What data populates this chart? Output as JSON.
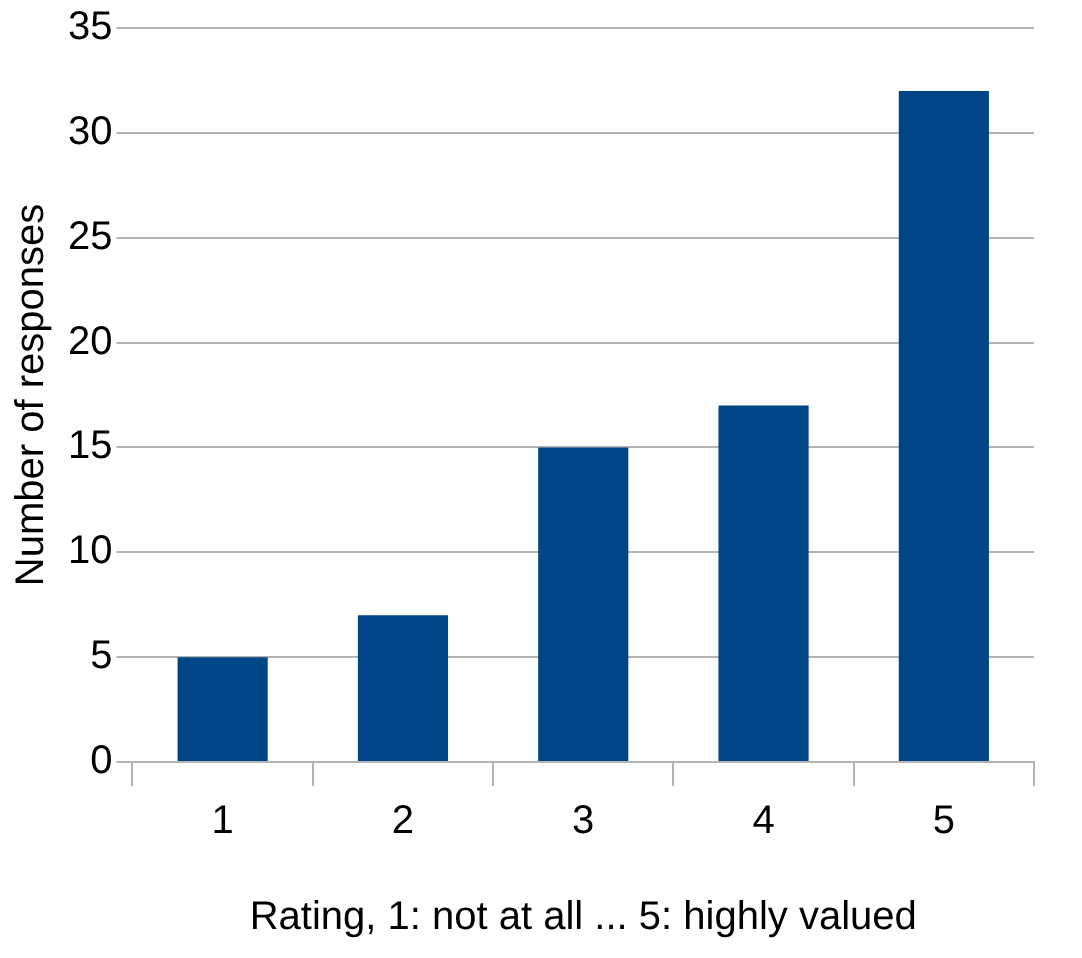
{
  "chart_data": {
    "type": "bar",
    "xlabel": "Rating, 1: not at all ... 5: highly valued",
    "ylabel": "Number of responses",
    "categories": [
      "1",
      "2",
      "3",
      "4",
      "5"
    ],
    "values": [
      5,
      7,
      15,
      17,
      32
    ],
    "color": "#004586",
    "ylim": [
      0,
      35
    ],
    "yticks": [
      0,
      5,
      10,
      15,
      20,
      25,
      30,
      35
    ],
    "grid": "y",
    "legend": false
  }
}
